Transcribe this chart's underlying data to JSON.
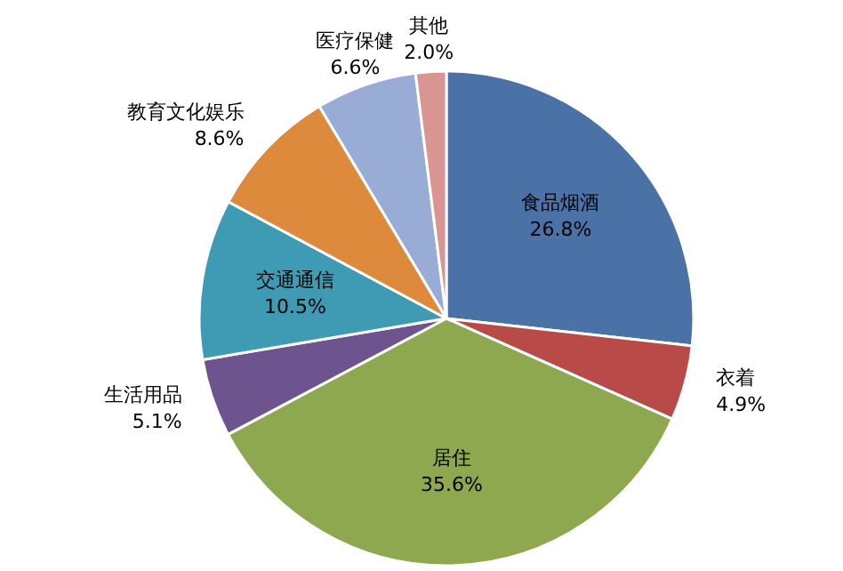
{
  "chart_data": {
    "type": "pie",
    "categories": [
      "食品烟酒",
      "衣着",
      "居住",
      "生活用品",
      "交通通信",
      "教育文化娱乐",
      "医疗保健",
      "其他"
    ],
    "values": [
      26.8,
      4.9,
      35.6,
      5.1,
      10.5,
      8.6,
      6.6,
      2.0
    ],
    "value_labels": [
      "26.8%",
      "4.9%",
      "35.6%",
      "5.1%",
      "10.5%",
      "8.6%",
      "6.6%",
      "2.0%"
    ],
    "colors": [
      "#4a72a6",
      "#b84b48",
      "#8ea850",
      "#6d548f",
      "#3f9bb3",
      "#de8a3d",
      "#98acd6",
      "#d99593"
    ]
  }
}
